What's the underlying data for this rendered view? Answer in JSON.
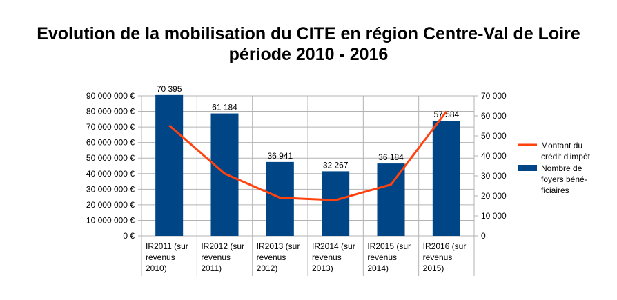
{
  "title_line1": "Evolution de la mobilisation du CITE en région Centre-Val de Loire",
  "title_line2": "période 2010 - 2016",
  "chart_data": {
    "type": "bar",
    "categories": [
      [
        "IR2011 (sur",
        "revenus",
        "2010)"
      ],
      [
        "IR2012 (sur",
        "revenus",
        "2011)"
      ],
      [
        "IR2013 (sur",
        "revenus",
        "2012)"
      ],
      [
        "IR2014 (sur",
        "revenus",
        "2013)"
      ],
      [
        "IR2015 (sur",
        "revenus",
        "2014)"
      ],
      [
        "IR2016 (sur",
        "revenus",
        "2015)"
      ]
    ],
    "series": [
      {
        "name": "Montant du crédit d'impôt",
        "name_lines": [
          "Montant du",
          "crédit d'impôt"
        ],
        "type": "line",
        "axis": "left",
        "color": "#ff420e",
        "values": [
          71000000,
          40000000,
          24500000,
          23000000,
          33000000,
          80000000
        ]
      },
      {
        "name": "Nombre de foyers bénéficiaires",
        "name_lines": [
          "Nombre de",
          "foyers béné-",
          "ficiaires"
        ],
        "type": "bar",
        "axis": "right",
        "color": "#004586",
        "values": [
          70395,
          61184,
          36941,
          32267,
          36184,
          57584
        ],
        "labels": [
          "70 395",
          "61 184",
          "36 941",
          "32 267",
          "36 184",
          "57 584"
        ]
      }
    ],
    "y_left": {
      "ylim": [
        0,
        90000000
      ],
      "ticks": [
        "0 €",
        "10 000 000 €",
        "20 000 000 €",
        "30 000 000 €",
        "40 000 000 €",
        "50 000 000 €",
        "60 000 000 €",
        "70 000 000 €",
        "80 000 000 €",
        "90 000 000 €"
      ]
    },
    "y_right": {
      "ylim": [
        0,
        70000
      ],
      "ticks": [
        "0",
        "10 000",
        "20 000",
        "30 000",
        "40 000",
        "50 000",
        "60 000",
        "70 000"
      ]
    },
    "grid": true,
    "legend": "right"
  }
}
